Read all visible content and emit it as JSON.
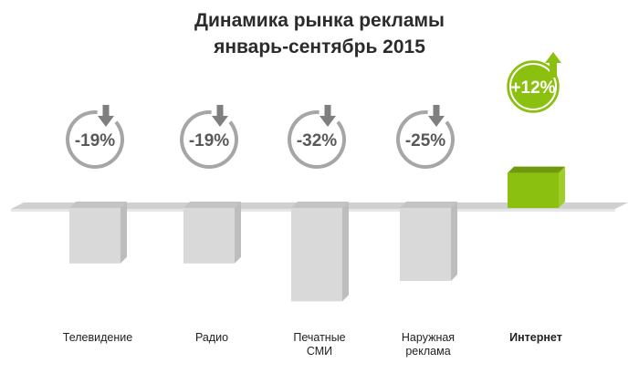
{
  "title": {
    "line1": "Динамика рынка рекламы",
    "line2": "январь-сентябрь 2015"
  },
  "colors": {
    "negative_bar": "#d9d9d9",
    "negative_circle": "#a6a6a6",
    "negative_text": "#595959",
    "positive_bar": "#8bc010",
    "positive_text": "#ffffff",
    "baseline": "#d0d0d0"
  },
  "chart_data": {
    "type": "bar",
    "categories": [
      "Телевидение",
      "Радио",
      "Печатные\nСМИ",
      "Наружная\nреклама",
      "Интернет"
    ],
    "values": [
      -19,
      -19,
      -32,
      -25,
      12
    ],
    "value_labels": [
      "-19%",
      "-19%",
      "-32%",
      "-25%",
      "+12%"
    ],
    "direction_icons": [
      "arrow-down-icon",
      "arrow-down-icon",
      "arrow-down-icon",
      "arrow-down-icon",
      "arrow-up-icon"
    ],
    "highlighted_category": "Интернет",
    "unit": "%",
    "ylim": [
      -35,
      15
    ],
    "grid": false,
    "legend": "none"
  }
}
